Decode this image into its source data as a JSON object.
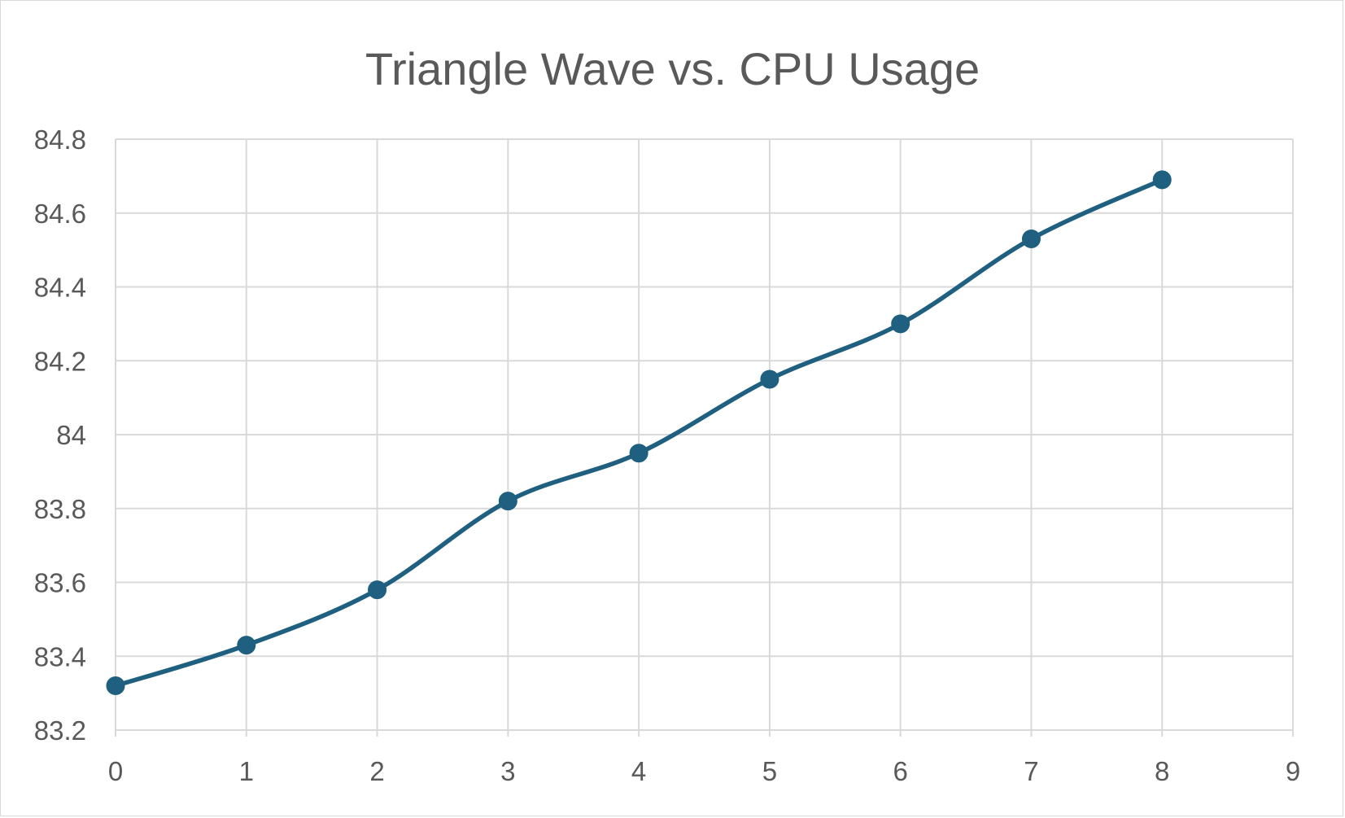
{
  "chart_data": {
    "type": "line",
    "title": "Triangle Wave vs. CPU Usage",
    "xlabel": "",
    "ylabel": "",
    "x": [
      0,
      1,
      2,
      3,
      4,
      5,
      6,
      7,
      8
    ],
    "series": [
      {
        "values": [
          83.32,
          83.43,
          83.58,
          83.82,
          83.95,
          84.15,
          84.3,
          84.53,
          84.69
        ],
        "color": "#1f5f7f",
        "smooth": true,
        "markers": true
      }
    ],
    "xlim": [
      0,
      9
    ],
    "ylim": [
      83.2,
      84.8
    ],
    "xticks": [
      "0",
      "1",
      "2",
      "3",
      "4",
      "5",
      "6",
      "7",
      "8",
      "9"
    ],
    "yticks": [
      "83.2",
      "83.4",
      "83.6",
      "83.8",
      "84",
      "84.2",
      "84.4",
      "84.6",
      "84.8"
    ],
    "grid": true,
    "legend": "none",
    "colors": {
      "series": "#1f5f7f",
      "grid": "#d9d9d9",
      "text": "#595959"
    }
  }
}
